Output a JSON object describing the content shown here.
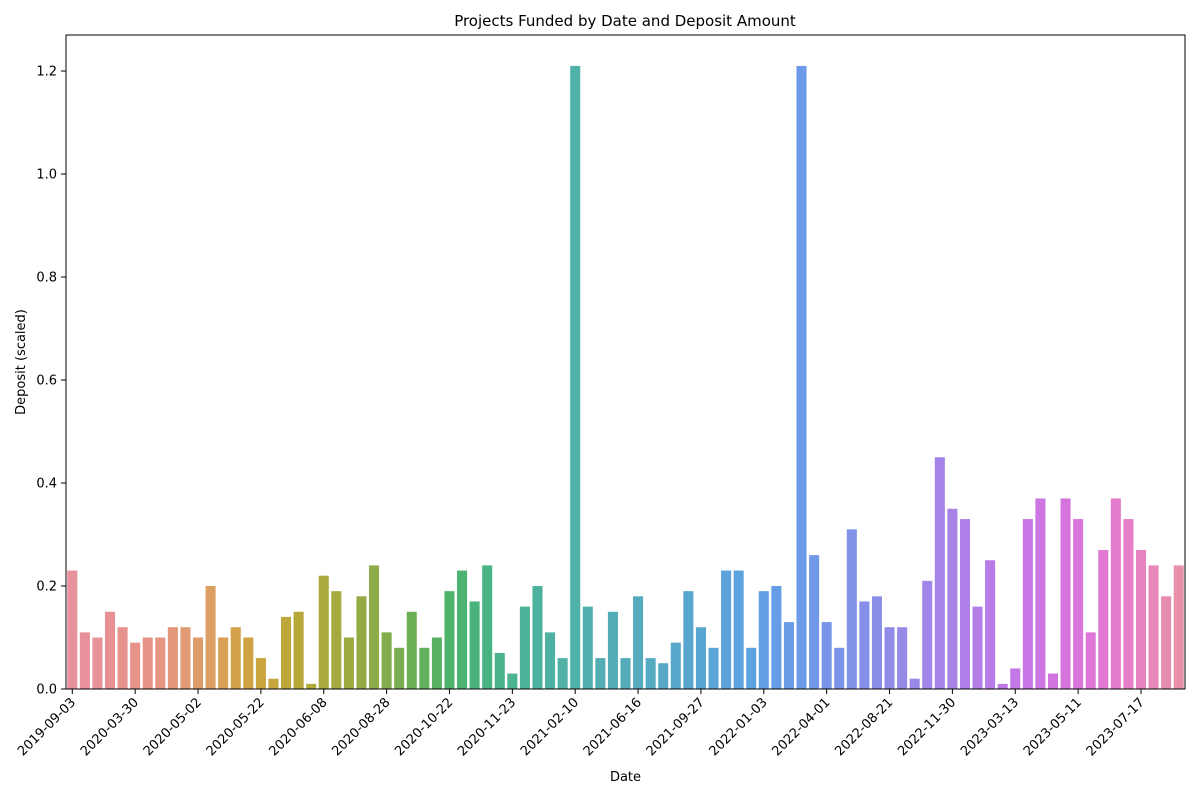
{
  "chart_data": {
    "type": "bar",
    "title": "Projects Funded by Date and Deposit Amount",
    "xlabel": "Date",
    "ylabel": "Deposit (scaled)",
    "ylim": [
      0,
      1.27
    ],
    "yticks": [
      "0.0",
      "0.2",
      "0.4",
      "0.6",
      "0.8",
      "1.0",
      "1.2"
    ],
    "ytick_values": [
      0,
      0.2,
      0.4,
      0.6,
      0.8,
      1.0,
      1.2
    ],
    "xtick_labels": [
      {
        "index": 0,
        "label": "2019-09-03"
      },
      {
        "index": 5,
        "label": "2020-03-30"
      },
      {
        "index": 10,
        "label": "2020-05-02"
      },
      {
        "index": 15,
        "label": "2020-05-22"
      },
      {
        "index": 20,
        "label": "2020-06-08"
      },
      {
        "index": 25,
        "label": "2020-08-28"
      },
      {
        "index": 30,
        "label": "2020-10-22"
      },
      {
        "index": 35,
        "label": "2020-11-23"
      },
      {
        "index": 40,
        "label": "2021-02-10"
      },
      {
        "index": 45,
        "label": "2021-06-16"
      },
      {
        "index": 50,
        "label": "2021-09-27"
      },
      {
        "index": 55,
        "label": "2022-01-03"
      },
      {
        "index": 60,
        "label": "2022-04-01"
      },
      {
        "index": 65,
        "label": "2022-08-21"
      },
      {
        "index": 70,
        "label": "2022-11-30"
      },
      {
        "index": 75,
        "label": "2023-03-13"
      },
      {
        "index": 80,
        "label": "2023-05-11"
      },
      {
        "index": 85,
        "label": "2023-07-17"
      }
    ],
    "values": [
      0.23,
      0.11,
      0.1,
      0.15,
      0.12,
      0.09,
      0.1,
      0.1,
      0.12,
      0.12,
      0.1,
      0.2,
      0.1,
      0.12,
      0.1,
      0.06,
      0.02,
      0.14,
      0.15,
      0.01,
      0.22,
      0.19,
      0.1,
      0.18,
      0.24,
      0.11,
      0.08,
      0.15,
      0.08,
      0.1,
      0.19,
      0.23,
      0.17,
      0.24,
      0.07,
      0.03,
      0.16,
      0.2,
      0.11,
      0.06,
      1.21,
      0.16,
      0.06,
      0.15,
      0.06,
      0.18,
      0.06,
      0.05,
      0.09,
      0.19,
      0.12,
      0.08,
      0.23,
      0.23,
      0.08,
      0.19,
      0.2,
      0.13,
      1.21,
      0.26,
      0.13,
      0.08,
      0.31,
      0.17,
      0.18,
      0.12,
      0.12,
      0.02,
      0.21,
      0.45,
      0.35,
      0.33,
      0.16,
      0.25,
      0.01,
      0.04,
      0.33,
      0.37,
      0.03,
      0.37,
      0.33,
      0.11,
      0.27,
      0.37,
      0.33,
      0.27,
      0.24,
      0.18,
      0.24
    ],
    "colors": [
      "#e8929e",
      "#e8919a",
      "#e89196",
      "#e89192",
      "#e8928e",
      "#e7938a",
      "#e69486",
      "#e49681",
      "#e3987a",
      "#e19a73",
      "#df9c6b",
      "#dc9e62",
      "#d89f55",
      "#d4a14b",
      "#cfa343",
      "#caa53e",
      "#c4a63a",
      "#bea839",
      "#b8a839",
      "#b2a93a",
      "#aba93b",
      "#a4aa3d",
      "#9caa40",
      "#94ab44",
      "#8bac48",
      "#82ad4c",
      "#78ae50",
      "#6daf55",
      "#62b05b",
      "#57b162",
      "#4db26a",
      "#4ab372",
      "#49b37b",
      "#49b383",
      "#4ab38b",
      "#4bb292",
      "#4cb298",
      "#4db29d",
      "#4eb1a2",
      "#4fb1a6",
      "#50b0aa",
      "#51afae",
      "#52aeb2",
      "#53adb6",
      "#54acba",
      "#55abbe",
      "#56aac2",
      "#57a9c6",
      "#58a8cb",
      "#59a7cf",
      "#5aa6d3",
      "#5ba5d7",
      "#5ca4db",
      "#5da3df",
      "#5fa2e2",
      "#62a0e4",
      "#659ee6",
      "#699ce7",
      "#6d9ae8",
      "#7298e8",
      "#7796e8",
      "#7c94e8",
      "#8192e8",
      "#8690e8",
      "#8b8ee8",
      "#908ce8",
      "#958ae8",
      "#9a88e8",
      "#9f86e8",
      "#a484e8",
      "#a982e8",
      "#ae80e8",
      "#b37ee8",
      "#b87ce8",
      "#bd7ae7",
      "#c278e6",
      "#c776e5",
      "#cc75e3",
      "#d174e1",
      "#d674de",
      "#da75db",
      "#de77d7",
      "#e179d2",
      "#e47ccd",
      "#e67fc7",
      "#e783c0",
      "#e887b9",
      "#e88bb1",
      "#e88fa9"
    ]
  }
}
